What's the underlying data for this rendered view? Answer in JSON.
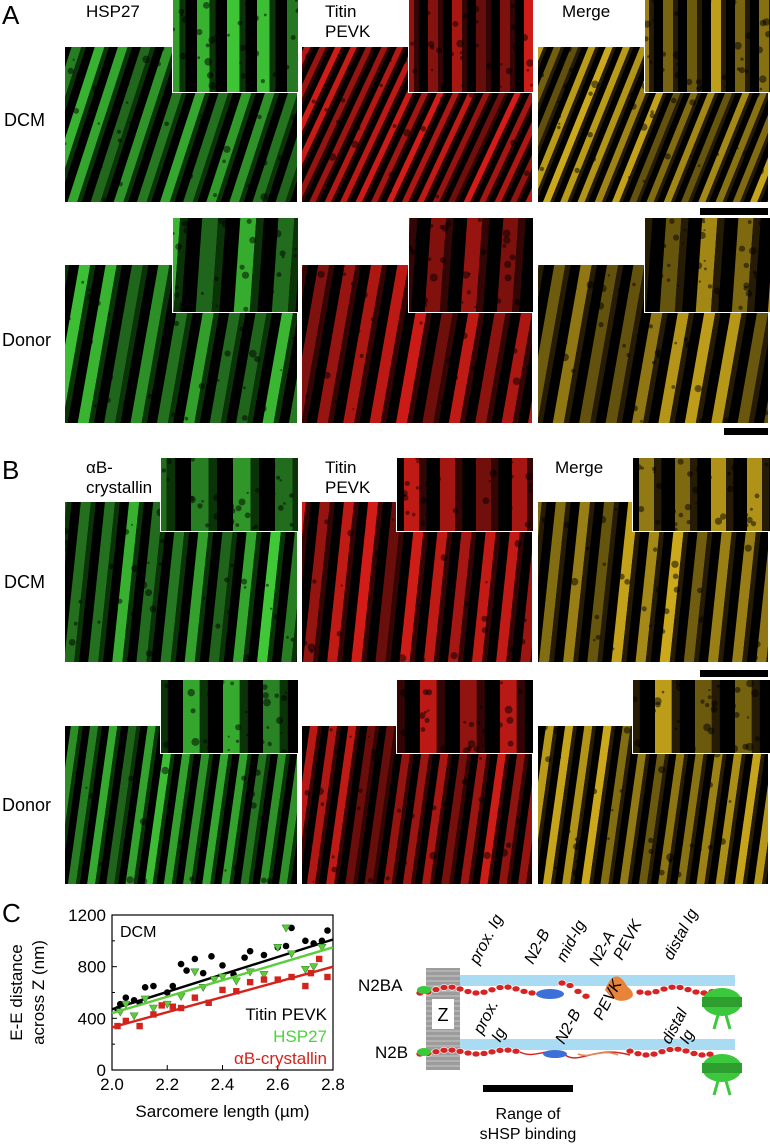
{
  "panels": {
    "A": {
      "letter": "A",
      "col_labels": [
        "HSP27",
        "Titin\nPEVK",
        "Merge"
      ],
      "row_labels": [
        "DCM",
        "Donor"
      ]
    },
    "B": {
      "letter": "B",
      "col_labels": [
        "αB-\ncrystallin",
        "Titin\nPEVK",
        "Merge"
      ],
      "row_labels": [
        "DCM",
        "Donor"
      ]
    },
    "C": {
      "letter": "C"
    }
  },
  "colors": {
    "green": "#3bd13b",
    "red": "#e01b1b",
    "merge": "#c8b020"
  },
  "chart_data": {
    "type": "scatter",
    "title": "DCM",
    "xlabel": "Sarcomere length (µm)",
    "ylabel": "E-E distance\nacross Z (nm)",
    "xlim": [
      2.0,
      2.8
    ],
    "ylim": [
      0,
      1200
    ],
    "xticks": [
      "2.0",
      "2.2",
      "2.4",
      "2.6",
      "2.8"
    ],
    "yticks": [
      "0",
      "400",
      "800",
      "1200"
    ],
    "series": [
      {
        "name": "Titin PEVK",
        "color": "#000000",
        "marker": "circle",
        "x": [
          2.02,
          2.03,
          2.05,
          2.08,
          2.1,
          2.12,
          2.15,
          2.2,
          2.22,
          2.25,
          2.27,
          2.3,
          2.33,
          2.36,
          2.4,
          2.44,
          2.48,
          2.5,
          2.55,
          2.6,
          2.63,
          2.65,
          2.7,
          2.73,
          2.76,
          2.78
        ],
        "y": [
          470,
          510,
          560,
          540,
          520,
          640,
          650,
          600,
          650,
          820,
          770,
          860,
          750,
          880,
          810,
          740,
          870,
          920,
          890,
          950,
          960,
          1100,
          1000,
          980,
          1000,
          1080
        ],
        "fit": [
          [
            2.0,
            470
          ],
          [
            2.8,
            1010
          ]
        ]
      },
      {
        "name": "HSP27",
        "color": "#5ccc3c",
        "marker": "triangle",
        "x": [
          2.03,
          2.05,
          2.08,
          2.12,
          2.15,
          2.2,
          2.25,
          2.3,
          2.33,
          2.37,
          2.4,
          2.45,
          2.5,
          2.55,
          2.6,
          2.63,
          2.65,
          2.7,
          2.73,
          2.76
        ],
        "y": [
          450,
          510,
          420,
          550,
          480,
          510,
          570,
          760,
          640,
          700,
          720,
          690,
          760,
          740,
          950,
          1100,
          900,
          780,
          800,
          950
        ],
        "fit": [
          [
            2.0,
            440
          ],
          [
            2.8,
            950
          ]
        ]
      },
      {
        "name": "αB-crystallin",
        "color": "#d2241c",
        "marker": "square",
        "x": [
          2.02,
          2.05,
          2.1,
          2.15,
          2.18,
          2.22,
          2.25,
          2.3,
          2.35,
          2.4,
          2.45,
          2.5,
          2.55,
          2.6,
          2.65,
          2.7,
          2.72,
          2.75,
          2.78
        ],
        "y": [
          340,
          380,
          340,
          430,
          500,
          490,
          480,
          560,
          520,
          620,
          610,
          680,
          700,
          700,
          720,
          650,
          750,
          860,
          720
        ],
        "fit": [
          [
            2.0,
            330
          ],
          [
            2.8,
            800
          ]
        ]
      }
    ]
  },
  "schematic": {
    "rows": [
      "N2BA",
      "N2B"
    ],
    "z_label": "Z",
    "n2ba_labels": [
      "prox. Ig",
      "N2-B",
      "mid-Ig",
      "N2-A",
      "PEVK",
      "distal Ig"
    ],
    "n2b_labels": [
      "prox.",
      "Ig",
      "N2-B",
      "PEVK",
      "distal",
      "Ig"
    ],
    "range_label": "Range of\nsHSP binding"
  }
}
